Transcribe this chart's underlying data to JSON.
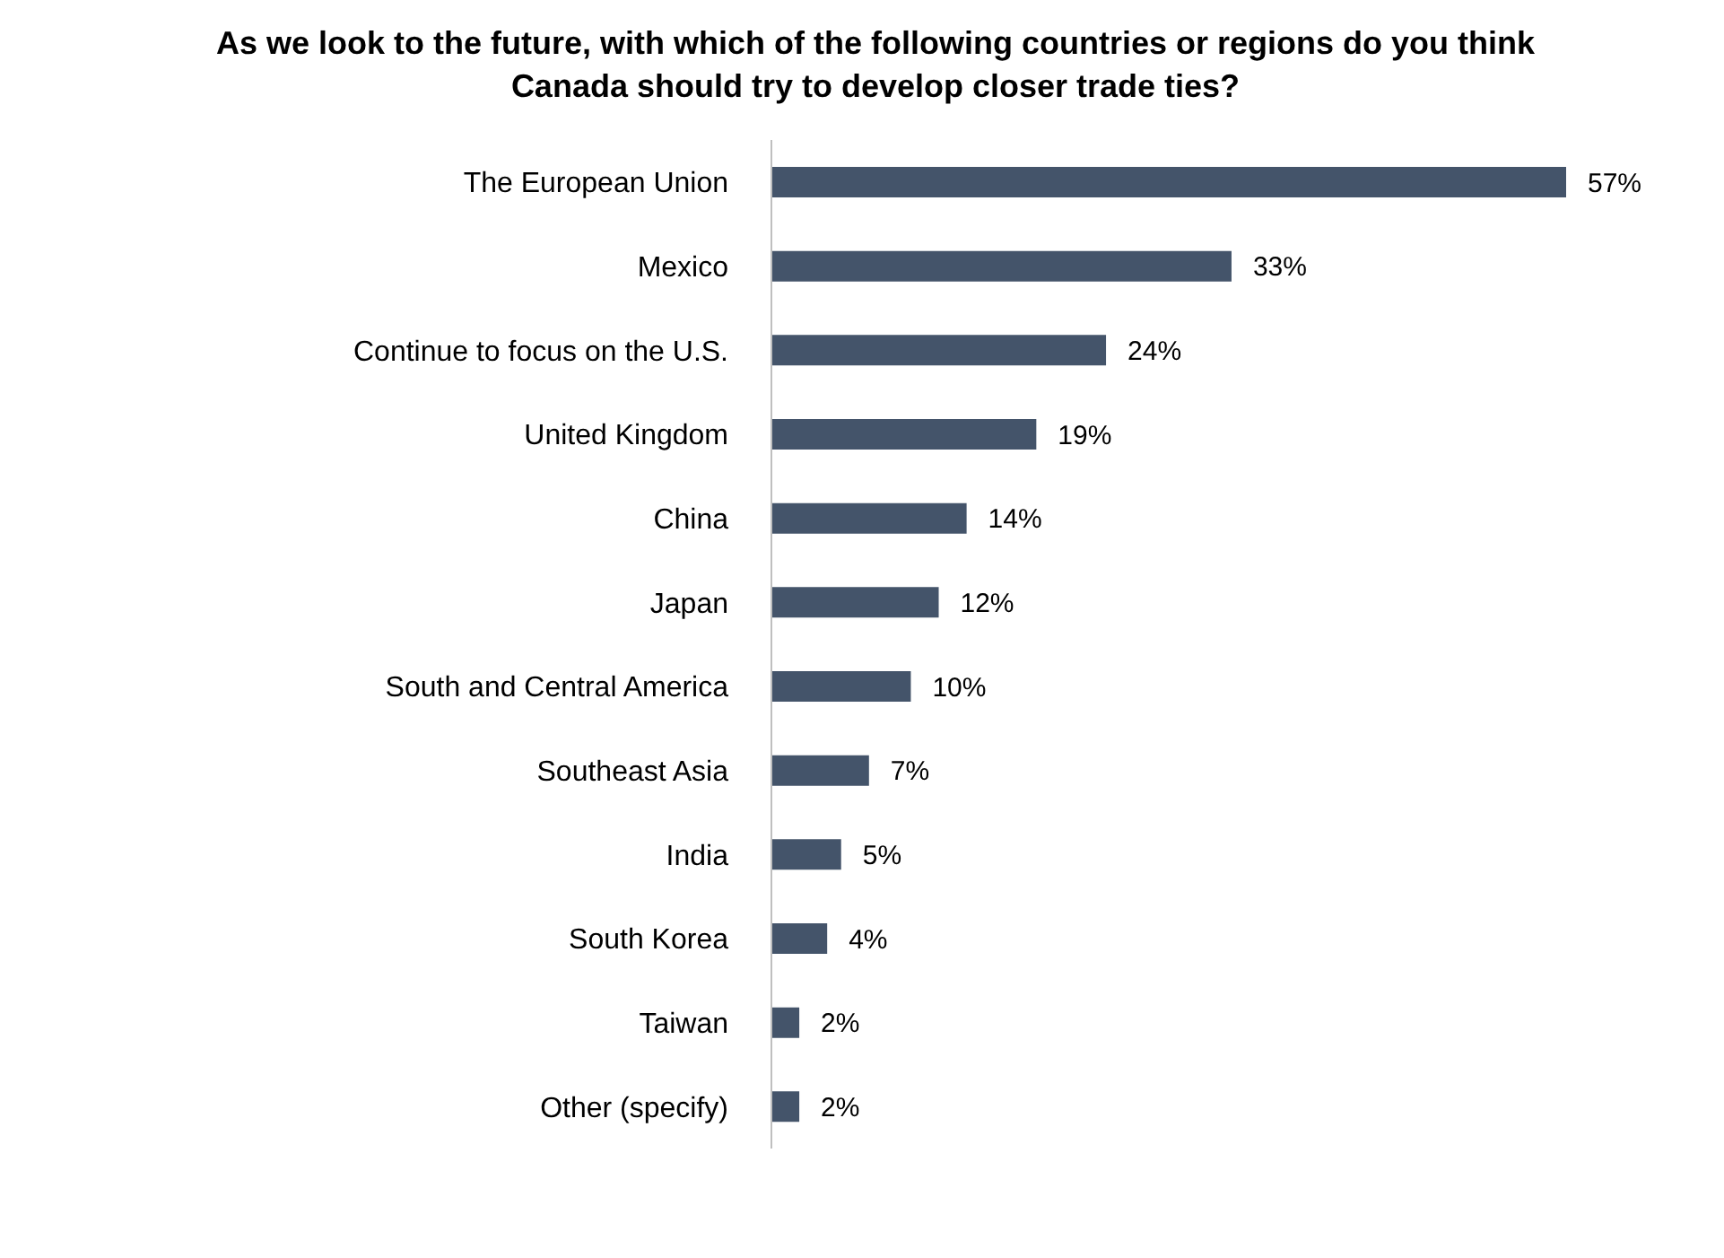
{
  "chart_data": {
    "type": "bar",
    "orientation": "horizontal",
    "title": "As we look to the future, with which of the following countries or regions do you think Canada should try to develop closer trade ties?",
    "categories": [
      "The European Union",
      "Mexico",
      "Continue to focus on the U.S.",
      "United Kingdom",
      "China",
      "Japan",
      "South and Central America",
      "Southeast Asia",
      "India",
      "South Korea",
      "Taiwan",
      "Other (specify)"
    ],
    "values": [
      57,
      33,
      24,
      19,
      14,
      12,
      10,
      7,
      5,
      4,
      2,
      2
    ],
    "value_labels": [
      "57%",
      "33%",
      "24%",
      "19%",
      "14%",
      "12%",
      "10%",
      "7%",
      "5%",
      "4%",
      "2%",
      "2%"
    ],
    "color": "#44546a",
    "grid": false,
    "legend": false,
    "tick_labels": "y"
  }
}
